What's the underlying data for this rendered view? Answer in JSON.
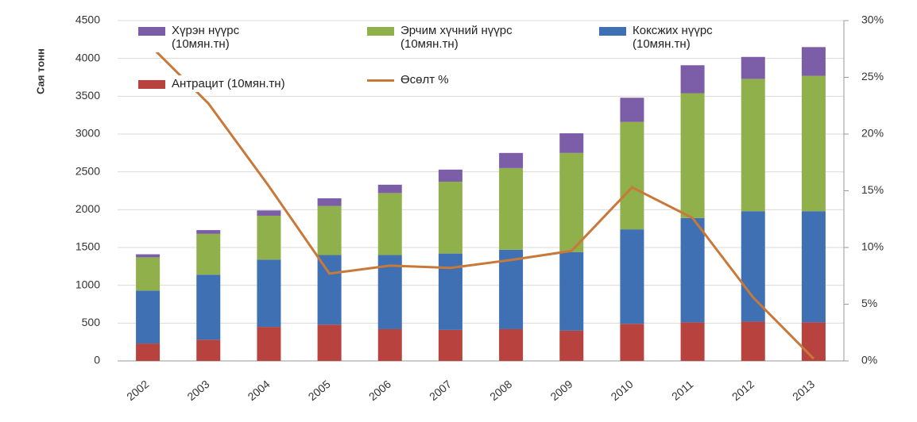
{
  "chart_data": {
    "type": "bar",
    "y_label": "Сая тонн",
    "categories": [
      "2002",
      "2003",
      "2004",
      "2005",
      "2006",
      "2007",
      "2008",
      "2009",
      "2010",
      "2011",
      "2012",
      "2013"
    ],
    "series": [
      {
        "name": "Антрацит (10мян.тн)",
        "color": "#b8433e",
        "values": [
          230,
          280,
          450,
          480,
          420,
          410,
          420,
          400,
          490,
          510,
          520,
          510
        ]
      },
      {
        "name": "Коксжих нүүрс (10мян.тн)",
        "color": "#3f70b3",
        "values": [
          700,
          860,
          890,
          920,
          980,
          1010,
          1050,
          1040,
          1250,
          1380,
          1460,
          1470
        ]
      },
      {
        "name": "Эрчим хүчний нүүрс (10мян.тн)",
        "color": "#8fb04a",
        "values": [
          440,
          540,
          580,
          650,
          820,
          950,
          1080,
          1310,
          1420,
          1650,
          1750,
          1790
        ]
      },
      {
        "name": "Хүрэн нүүрс (10мян.тн)",
        "color": "#7b5ea7",
        "values": [
          40,
          50,
          70,
          100,
          110,
          160,
          200,
          260,
          320,
          370,
          290,
          380
        ]
      },
      {
        "name": "Өсөлт %",
        "color": "#c8793a",
        "type": "line",
        "axis": "y2",
        "values": [
          28,
          22.7,
          15.4,
          7.7,
          8.4,
          8.2,
          8.9,
          9.7,
          15.3,
          12.6,
          5.6,
          0.2
        ]
      }
    ],
    "ylim": [
      0,
      4500
    ],
    "yticks": [
      0,
      500,
      1000,
      1500,
      2000,
      2500,
      3000,
      3500,
      4000,
      4500
    ],
    "y2lim": [
      0,
      30
    ],
    "y2ticks": [
      {
        "value": 0,
        "label": "0%"
      },
      {
        "value": 5,
        "label": "5%"
      },
      {
        "value": 10,
        "label": "10%"
      },
      {
        "value": 15,
        "label": "15%"
      },
      {
        "value": 20,
        "label": "20%"
      },
      {
        "value": 25,
        "label": "25%"
      },
      {
        "value": 30,
        "label": "30%"
      }
    ],
    "grid": true,
    "stacked": true
  }
}
